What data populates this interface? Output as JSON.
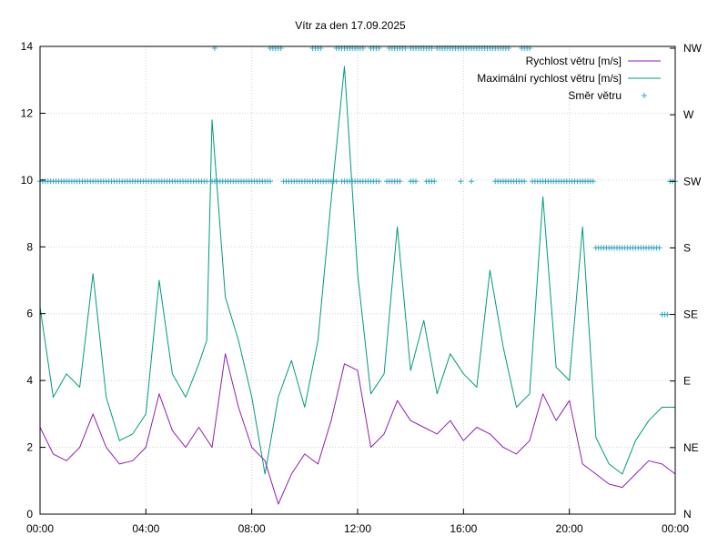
{
  "chart_data": {
    "type": "line",
    "title": "Vítr za den 17.09.2025",
    "x_ticks": [
      "00:00",
      "04:00",
      "08:00",
      "12:00",
      "16:00",
      "20:00",
      "00:00"
    ],
    "x_range_hours": [
      0,
      24
    ],
    "y_range": [
      0,
      14
    ],
    "y_ticks": [
      "0",
      "2",
      "4",
      "6",
      "8",
      "10",
      "12",
      "14"
    ],
    "y2_ticks": [
      "N",
      "NE",
      "E",
      "SE",
      "S",
      "SW",
      "W",
      "NW"
    ],
    "grid": true,
    "legend_position": "top-right",
    "colors": {
      "speed": "#8e1fb0",
      "max_speed": "#009b7d",
      "direction": "#35a8c4",
      "grid": "#d3d3d3"
    },
    "series": [
      {
        "key": "speed",
        "name": "Rychlost větru [m/s]",
        "x_hours": [
          0,
          0.5,
          1,
          1.5,
          2,
          2.5,
          3,
          3.5,
          4,
          4.5,
          5,
          5.5,
          6,
          6.5,
          7,
          7.5,
          8,
          8.5,
          9,
          9.5,
          10,
          10.5,
          11,
          11.5,
          12,
          12.5,
          13,
          13.5,
          14,
          14.5,
          15,
          15.5,
          16,
          16.5,
          17,
          17.5,
          18,
          18.5,
          19,
          19.5,
          20,
          20.5,
          21,
          21.5,
          22,
          22.5,
          23,
          23.5,
          24
        ],
        "values": [
          2.6,
          1.8,
          1.6,
          2.0,
          3.0,
          2.0,
          1.5,
          1.6,
          2.0,
          3.6,
          2.5,
          2.0,
          2.6,
          2.0,
          4.8,
          3.2,
          2.0,
          1.6,
          0.3,
          1.2,
          1.8,
          1.5,
          2.8,
          4.5,
          4.3,
          2.0,
          2.4,
          3.4,
          2.8,
          2.6,
          2.4,
          2.8,
          2.2,
          2.6,
          2.4,
          2.0,
          1.8,
          2.2,
          3.6,
          2.8,
          3.4,
          1.5,
          1.2,
          0.9,
          0.8,
          1.2,
          1.6,
          1.5,
          1.2
        ]
      },
      {
        "key": "max_speed",
        "name": "Maximální rychlost větru [m/s]",
        "x_hours": [
          0,
          0.5,
          1,
          1.5,
          2,
          2.5,
          3,
          3.5,
          4,
          4.5,
          5,
          5.5,
          6,
          6.3,
          6.5,
          7,
          7.5,
          8,
          8.5,
          9,
          9.5,
          10,
          10.5,
          11,
          11.5,
          12,
          12.5,
          13,
          13.5,
          14,
          14.5,
          15,
          15.5,
          16,
          16.5,
          17,
          17.5,
          18,
          18.5,
          19,
          19.5,
          20,
          20.5,
          21,
          21.5,
          22,
          22.5,
          23,
          23.5,
          24
        ],
        "values": [
          6.2,
          3.5,
          4.2,
          3.8,
          7.2,
          3.5,
          2.2,
          2.4,
          3.0,
          7.0,
          4.2,
          3.5,
          4.5,
          5.2,
          11.8,
          6.5,
          5.2,
          3.5,
          1.2,
          3.5,
          4.6,
          3.2,
          5.2,
          9.4,
          13.4,
          7.2,
          3.6,
          4.2,
          8.6,
          4.3,
          5.8,
          3.6,
          4.8,
          4.2,
          3.8,
          7.3,
          5.0,
          3.2,
          3.6,
          9.5,
          4.4,
          4.0,
          8.6,
          2.3,
          1.5,
          1.2,
          2.2,
          2.8,
          3.2,
          3.2
        ]
      },
      {
        "key": "direction",
        "name": "Směr větru",
        "points": [
          {
            "from": 0.0,
            "to": 6.3,
            "step": 0.1,
            "dir": "SW"
          },
          {
            "from": 6.6,
            "to": 6.6,
            "step": 0.1,
            "dir": "NW"
          },
          {
            "from": 6.5,
            "to": 8.7,
            "step": 0.1,
            "dir": "SW"
          },
          {
            "from": 8.7,
            "to": 9.1,
            "step": 0.1,
            "dir": "NW"
          },
          {
            "from": 9.2,
            "to": 11.2,
            "step": 0.1,
            "dir": "SW"
          },
          {
            "from": 10.3,
            "to": 10.6,
            "step": 0.1,
            "dir": "NW"
          },
          {
            "from": 11.2,
            "to": 12.2,
            "step": 0.1,
            "dir": "NW"
          },
          {
            "from": 11.4,
            "to": 12.8,
            "step": 0.1,
            "dir": "SW"
          },
          {
            "from": 12.5,
            "to": 12.8,
            "step": 0.1,
            "dir": "NW"
          },
          {
            "from": 13.2,
            "to": 13.8,
            "step": 0.1,
            "dir": "NW"
          },
          {
            "from": 13.1,
            "to": 13.6,
            "step": 0.1,
            "dir": "SW"
          },
          {
            "from": 14.0,
            "to": 14.2,
            "step": 0.1,
            "dir": "SW"
          },
          {
            "from": 14.0,
            "to": 14.8,
            "step": 0.1,
            "dir": "NW"
          },
          {
            "from": 14.6,
            "to": 14.9,
            "step": 0.1,
            "dir": "SW"
          },
          {
            "from": 15.0,
            "to": 17.7,
            "step": 0.1,
            "dir": "NW"
          },
          {
            "from": 15.9,
            "to": 15.9,
            "step": 0.1,
            "dir": "SW"
          },
          {
            "from": 16.3,
            "to": 16.3,
            "step": 0.1,
            "dir": "SW"
          },
          {
            "from": 17.2,
            "to": 18.3,
            "step": 0.1,
            "dir": "SW"
          },
          {
            "from": 18.2,
            "to": 18.5,
            "step": 0.1,
            "dir": "NW"
          },
          {
            "from": 18.6,
            "to": 20.9,
            "step": 0.1,
            "dir": "SW"
          },
          {
            "from": 21.0,
            "to": 23.4,
            "step": 0.1,
            "dir": "S"
          },
          {
            "from": 23.5,
            "to": 23.7,
            "step": 0.1,
            "dir": "SE"
          },
          {
            "from": 23.8,
            "to": 24.0,
            "step": 0.1,
            "dir": "SW"
          }
        ]
      }
    ]
  }
}
